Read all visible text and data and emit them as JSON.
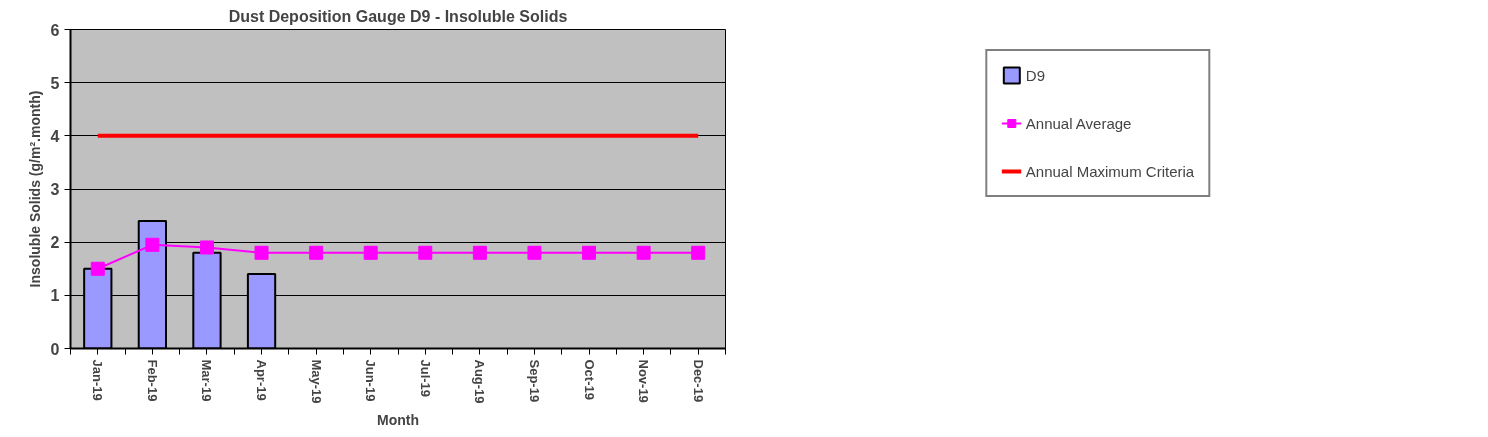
{
  "chart_data": {
    "type": "bar",
    "title": "Dust Deposition Gauge D9 - Insoluble Solids",
    "xlabel": "Month",
    "ylabel": "Insoluble Solids (g/m².month)",
    "categories": [
      "Jan-19",
      "Feb-19",
      "Mar-19",
      "Apr-19",
      "May-19",
      "Jun-19",
      "Jul-19",
      "Aug-19",
      "Sep-19",
      "Oct-19",
      "Nov-19",
      "Dec-19"
    ],
    "series": [
      {
        "name": "D9",
        "color": "#9999ff",
        "values": [
          1.5,
          2.4,
          1.8,
          1.4,
          null,
          null,
          null,
          null,
          null,
          null,
          null,
          null
        ]
      },
      {
        "name": "Annual Average",
        "type": "line",
        "color": "#ff00ff",
        "marker": "square",
        "values": [
          1.5,
          1.95,
          1.9,
          1.8,
          1.8,
          1.8,
          1.8,
          1.8,
          1.8,
          1.8,
          1.8,
          1.8
        ]
      },
      {
        "name": "Annual Maximum Criteria",
        "type": "line",
        "color": "#ff0000",
        "marker": "none",
        "values": [
          4,
          4,
          4,
          4,
          4,
          4,
          4,
          4,
          4,
          4,
          4,
          4
        ]
      }
    ],
    "ylim": [
      0,
      6
    ],
    "yticks": [
      0,
      1,
      2,
      3,
      4,
      5,
      6
    ],
    "grid": "y",
    "legend": "right"
  }
}
